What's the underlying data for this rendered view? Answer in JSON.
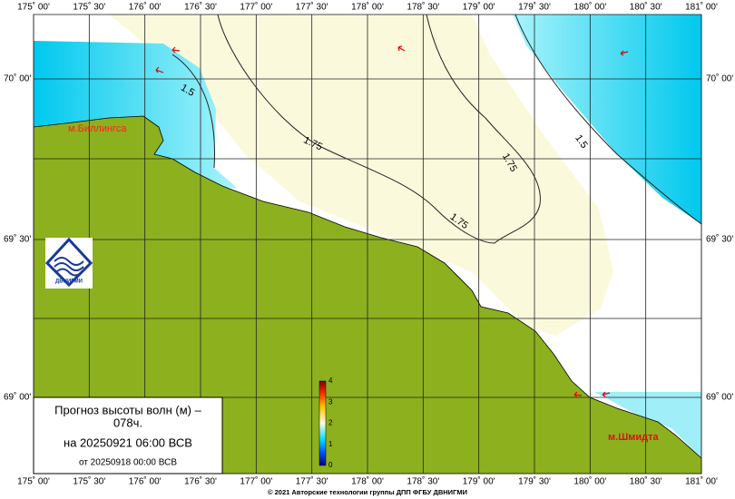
{
  "map": {
    "lon_labels": [
      "175˚ 00'",
      "175˚ 30'",
      "176˚ 00'",
      "176˚ 30'",
      "177˚ 00'",
      "177˚ 30'",
      "178˚ 00'",
      "178˚ 30'",
      "179˚ 00'",
      "179˚ 30'",
      "180˚ 00'",
      "180˚ 30'",
      "181˚ 00'"
    ],
    "lat_labels": [
      "70˚ 00'",
      "69˚ 30'",
      "69˚ 00'"
    ],
    "contour_labels": [
      "1.5",
      "1.75",
      "1.75",
      "1.75",
      "1.5"
    ],
    "places": [
      "м.Биллингса",
      "м.Шмидта"
    ],
    "colorbar_ticks": [
      "4",
      "3",
      "2",
      "1",
      "0"
    ],
    "info": {
      "title": "Прогноз высоты волн (м) –",
      "hours": "078ч.",
      "valid": "на 20250921 06:00 ВСВ",
      "issued": "от 20250918 00:00 ВСВ"
    },
    "logo": "ДВНИГМИ",
    "footer": "© 2021 Авторские технологии группы ДПП ФГБУ ДВНИГМИ"
  }
}
